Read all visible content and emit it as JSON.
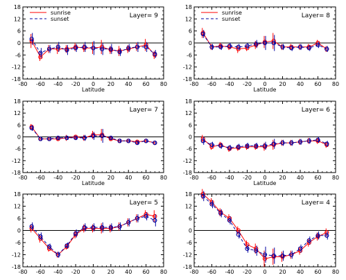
{
  "colors": {
    "sunrise": "#ff0000",
    "sunset": "#0000a0",
    "axis": "#000000"
  },
  "chart_data": [
    {
      "type": "line",
      "layer_label": "Layer=   9",
      "xlabel": "Latitude",
      "ylabel": "",
      "xlim": [
        -80,
        80
      ],
      "ylim": [
        -18,
        18
      ],
      "xticks": [
        -80,
        -60,
        -40,
        -20,
        0,
        20,
        40,
        60,
        80
      ],
      "yticks": [
        -18,
        -12,
        -6,
        0,
        6,
        12,
        18
      ],
      "zero_line": true,
      "legend": {
        "placement": "top-left",
        "entries": [
          "sunrise",
          "sunset"
        ]
      },
      "x": [
        -70,
        -60,
        -50,
        -40,
        -30,
        -20,
        -10,
        0,
        10,
        20,
        30,
        40,
        50,
        60,
        70
      ],
      "series": [
        {
          "name": "sunrise",
          "style": "solid",
          "color": "#ff0000",
          "values": [
            1.0,
            -7.0,
            -3.0,
            -3.0,
            -3.0,
            -2.0,
            -2.5,
            -2.5,
            -2.0,
            -3.5,
            -4.0,
            -3.0,
            -2.0,
            -1.0,
            -6.0
          ],
          "errors": [
            3.5,
            2.0,
            2.0,
            2.5,
            2.0,
            2.0,
            2.0,
            3.0,
            3.5,
            2.0,
            2.5,
            2.0,
            2.0,
            3.0,
            2.0
          ]
        },
        {
          "name": "sunset",
          "style": "dashed",
          "color": "#0000a0",
          "values": [
            2.0,
            -5.0,
            -3.0,
            -2.0,
            -3.5,
            -2.5,
            -2.0,
            -2.5,
            -3.0,
            -3.0,
            -4.5,
            -2.5,
            -2.0,
            -2.0,
            -5.5
          ],
          "errors": [
            3.0,
            2.5,
            2.0,
            2.5,
            2.5,
            2.0,
            2.5,
            3.5,
            3.0,
            2.5,
            2.0,
            2.0,
            2.5,
            2.5,
            2.0
          ]
        }
      ]
    },
    {
      "type": "line",
      "layer_label": "Layer=   8",
      "xlabel": "Latitude",
      "ylabel": "",
      "xlim": [
        -80,
        80
      ],
      "ylim": [
        -18,
        18
      ],
      "xticks": [
        -80,
        -60,
        -40,
        -20,
        0,
        20,
        40,
        60,
        80
      ],
      "yticks": [
        -18,
        -12,
        -6,
        0,
        6,
        12,
        18
      ],
      "zero_line": true,
      "legend": {
        "placement": "top-left",
        "entries": [
          "sunrise",
          "sunset"
        ]
      },
      "x": [
        -70,
        -60,
        -50,
        -40,
        -30,
        -20,
        -10,
        0,
        10,
        20,
        30,
        40,
        50,
        60,
        70
      ],
      "series": [
        {
          "name": "sunrise",
          "style": "solid",
          "color": "#ff0000",
          "values": [
            5.0,
            -2.0,
            -1.5,
            -2.0,
            -3.0,
            -2.5,
            -1.0,
            0.5,
            1.0,
            -2.0,
            -2.0,
            -2.0,
            -2.0,
            0.0,
            -3.0
          ],
          "errors": [
            2.5,
            1.5,
            1.5,
            1.5,
            2.0,
            1.5,
            2.0,
            3.0,
            4.0,
            1.5,
            1.5,
            1.5,
            1.5,
            1.5,
            1.5
          ]
        },
        {
          "name": "sunset",
          "style": "dashed",
          "color": "#0000a0",
          "values": [
            4.5,
            -2.0,
            -2.0,
            -1.5,
            -2.0,
            -1.5,
            -0.5,
            0.0,
            0.0,
            -2.0,
            -2.5,
            -2.0,
            -2.5,
            -1.0,
            -3.0
          ],
          "errors": [
            2.0,
            1.5,
            1.5,
            1.5,
            1.5,
            1.5,
            2.0,
            3.5,
            4.0,
            1.5,
            1.5,
            1.5,
            1.5,
            1.5,
            1.5
          ]
        }
      ]
    },
    {
      "type": "line",
      "layer_label": "Layer=   7",
      "xlabel": "Latitude",
      "ylabel": "",
      "xlim": [
        -80,
        80
      ],
      "ylim": [
        -18,
        18
      ],
      "xticks": [
        -80,
        -60,
        -40,
        -20,
        0,
        20,
        40,
        60,
        80
      ],
      "yticks": [
        -18,
        -12,
        -6,
        0,
        6,
        12,
        18
      ],
      "zero_line": true,
      "legend": null,
      "x": [
        -70,
        -60,
        -50,
        -40,
        -30,
        -20,
        -10,
        0,
        10,
        20,
        30,
        40,
        50,
        60,
        70
      ],
      "series": [
        {
          "name": "sunrise",
          "style": "solid",
          "color": "#ff0000",
          "values": [
            5.0,
            -1.0,
            -1.0,
            -1.0,
            -0.5,
            0.0,
            -0.5,
            1.0,
            1.0,
            -1.0,
            -2.0,
            -2.0,
            -2.5,
            -2.0,
            -3.0
          ],
          "errors": [
            1.5,
            1.0,
            1.0,
            1.0,
            1.5,
            1.0,
            1.5,
            2.0,
            3.0,
            1.0,
            1.0,
            1.0,
            1.0,
            1.0,
            1.0
          ]
        },
        {
          "name": "sunset",
          "style": "dashed",
          "color": "#0000a0",
          "values": [
            4.5,
            -1.0,
            -1.0,
            -0.5,
            -0.5,
            -0.5,
            -0.5,
            0.5,
            0.5,
            -0.5,
            -2.0,
            -2.0,
            -3.0,
            -2.0,
            -3.0
          ],
          "errors": [
            1.5,
            1.0,
            1.0,
            1.0,
            1.0,
            1.0,
            1.5,
            2.0,
            3.5,
            1.0,
            1.0,
            1.0,
            1.0,
            1.0,
            1.0
          ]
        }
      ]
    },
    {
      "type": "line",
      "layer_label": "Layer=   6",
      "xlabel": "Latitude",
      "ylabel": "",
      "xlim": [
        -80,
        80
      ],
      "ylim": [
        -18,
        18
      ],
      "xticks": [
        -80,
        -60,
        -40,
        -20,
        0,
        20,
        40,
        60,
        80
      ],
      "yticks": [
        -18,
        -12,
        -6,
        0,
        6,
        12,
        18
      ],
      "zero_line": true,
      "legend": null,
      "x": [
        -70,
        -60,
        -50,
        -40,
        -30,
        -20,
        -10,
        0,
        10,
        20,
        30,
        40,
        50,
        60,
        70
      ],
      "series": [
        {
          "name": "sunrise",
          "style": "solid",
          "color": "#ff0000",
          "values": [
            -1.0,
            -5.0,
            -4.0,
            -6.0,
            -5.5,
            -5.0,
            -5.0,
            -5.0,
            -4.0,
            -3.0,
            -3.0,
            -2.5,
            -2.0,
            -2.0,
            -4.0
          ],
          "errors": [
            2.0,
            1.5,
            1.5,
            1.5,
            1.5,
            1.5,
            1.5,
            2.0,
            2.5,
            1.5,
            1.5,
            1.5,
            1.5,
            1.5,
            1.5
          ]
        },
        {
          "name": "sunset",
          "style": "dashed",
          "color": "#0000a0",
          "values": [
            -2.0,
            -4.0,
            -4.5,
            -5.5,
            -5.0,
            -4.5,
            -4.5,
            -4.5,
            -3.5,
            -3.0,
            -3.0,
            -2.5,
            -2.0,
            -1.5,
            -3.5
          ],
          "errors": [
            2.0,
            1.5,
            1.5,
            1.5,
            1.5,
            1.5,
            1.5,
            2.0,
            2.5,
            1.5,
            1.5,
            1.5,
            1.5,
            1.5,
            1.5
          ]
        }
      ]
    },
    {
      "type": "line",
      "layer_label": "Layer=   5",
      "xlabel": "",
      "ylabel": "",
      "xlim": [
        -80,
        80
      ],
      "ylim": [
        -18,
        18
      ],
      "xticks": [
        -80,
        -60,
        -40,
        -20,
        0,
        20,
        40,
        60,
        80
      ],
      "yticks": [
        -18,
        -12,
        -6,
        0,
        6,
        12,
        18
      ],
      "zero_line": true,
      "legend": null,
      "x": [
        -70,
        -60,
        -50,
        -40,
        -30,
        -20,
        -10,
        0,
        10,
        20,
        30,
        40,
        50,
        60,
        70
      ],
      "series": [
        {
          "name": "sunrise",
          "style": "solid",
          "color": "#ff0000",
          "values": [
            1.0,
            -4.0,
            -9.0,
            -12.0,
            -8.0,
            -2.0,
            1.0,
            1.0,
            1.0,
            1.0,
            2.0,
            4.0,
            6.0,
            8.0,
            7.0
          ],
          "errors": [
            2.0,
            2.0,
            1.5,
            1.5,
            1.5,
            2.0,
            2.0,
            2.0,
            2.5,
            2.0,
            2.0,
            2.0,
            2.0,
            2.0,
            3.0
          ]
        },
        {
          "name": "sunset",
          "style": "dashed",
          "color": "#0000a0",
          "values": [
            2.0,
            -3.0,
            -8.0,
            -12.0,
            -7.5,
            -1.5,
            1.5,
            1.5,
            1.5,
            1.5,
            2.0,
            4.0,
            6.0,
            7.0,
            5.0
          ],
          "errors": [
            2.0,
            2.0,
            1.5,
            1.5,
            1.5,
            2.0,
            2.0,
            2.0,
            2.5,
            2.0,
            2.0,
            2.0,
            2.0,
            2.0,
            3.0
          ]
        }
      ]
    },
    {
      "type": "line",
      "layer_label": "Layer=   4",
      "xlabel": "",
      "ylabel": "",
      "xlim": [
        -80,
        80
      ],
      "ylim": [
        -18,
        18
      ],
      "xticks": [
        -80,
        -60,
        -40,
        -20,
        0,
        20,
        40,
        60,
        80
      ],
      "yticks": [
        -18,
        -12,
        -6,
        0,
        6,
        12,
        18
      ],
      "zero_line": true,
      "legend": null,
      "x": [
        -70,
        -60,
        -50,
        -40,
        -30,
        -20,
        -10,
        0,
        10,
        20,
        30,
        40,
        50,
        60,
        70
      ],
      "series": [
        {
          "name": "sunrise",
          "style": "solid",
          "color": "#ff0000",
          "values": [
            18.0,
            14.0,
            9.0,
            6.0,
            0.0,
            -7.0,
            -9.0,
            -14.0,
            -13.0,
            -13.0,
            -12.0,
            -10.0,
            -6.0,
            -3.0,
            -1.0
          ],
          "errors": [
            2.5,
            2.0,
            2.0,
            2.0,
            2.0,
            2.0,
            2.5,
            4.0,
            4.0,
            2.5,
            2.0,
            2.0,
            2.0,
            2.0,
            2.0
          ]
        },
        {
          "name": "sunset",
          "style": "dashed",
          "color": "#0000a0",
          "values": [
            17.0,
            13.0,
            8.5,
            5.0,
            -2.0,
            -9.0,
            -10.0,
            -12.0,
            -12.5,
            -12.5,
            -12.0,
            -9.0,
            -5.0,
            -2.5,
            -2.5
          ],
          "errors": [
            2.5,
            2.0,
            2.0,
            2.0,
            2.0,
            2.0,
            2.5,
            4.0,
            4.0,
            2.5,
            2.0,
            2.0,
            2.0,
            2.0,
            2.0
          ]
        }
      ]
    }
  ]
}
